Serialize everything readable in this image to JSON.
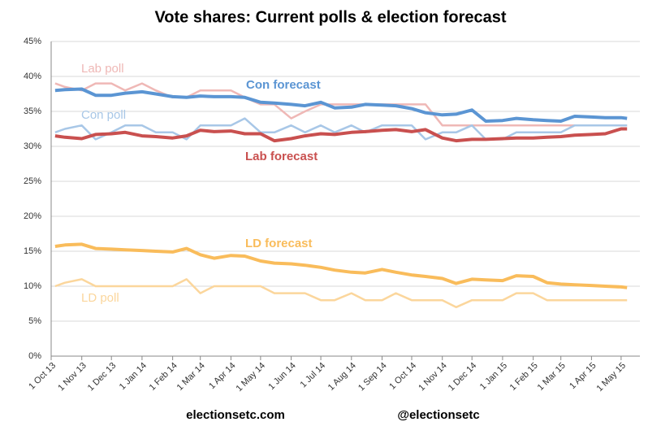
{
  "chart_data": {
    "type": "line",
    "title": "Vote shares: Current polls & election forecast",
    "credits": [
      "electionsetc.com",
      "@electionsetc"
    ],
    "x": [
      "2013-10-05",
      "2013-10-15",
      "2013-11-01",
      "2013-11-15",
      "2013-12-01",
      "2013-12-15",
      "2014-01-01",
      "2014-01-15",
      "2014-02-01",
      "2014-02-15",
      "2014-03-01",
      "2014-03-15",
      "2014-04-01",
      "2014-04-15",
      "2014-05-01",
      "2014-05-15",
      "2014-06-01",
      "2014-06-15",
      "2014-07-01",
      "2014-07-15",
      "2014-08-01",
      "2014-08-15",
      "2014-09-01",
      "2014-09-15",
      "2014-10-01",
      "2014-10-15",
      "2014-11-01",
      "2014-11-15",
      "2014-12-01",
      "2014-12-15",
      "2015-01-01",
      "2015-01-15",
      "2015-02-01",
      "2015-02-15",
      "2015-03-01",
      "2015-03-15",
      "2015-04-01",
      "2015-04-15",
      "2015-05-01",
      "2015-05-07"
    ],
    "xlim": [
      "2013-10-01",
      "2015-05-20"
    ],
    "xticks": [
      {
        "value": "2013-10-01",
        "label": "1 Oct 13"
      },
      {
        "value": "2013-11-01",
        "label": "1 Nov 13"
      },
      {
        "value": "2013-12-01",
        "label": "1 Dec 13"
      },
      {
        "value": "2014-01-01",
        "label": "1 Jan 14"
      },
      {
        "value": "2014-02-01",
        "label": "1 Feb 14"
      },
      {
        "value": "2014-03-01",
        "label": "1 Mar 14"
      },
      {
        "value": "2014-04-01",
        "label": "1 Apr 14"
      },
      {
        "value": "2014-05-01",
        "label": "1 May 14"
      },
      {
        "value": "2014-06-01",
        "label": "1 Jun 14"
      },
      {
        "value": "2014-07-01",
        "label": "1 Jul 14"
      },
      {
        "value": "2014-08-01",
        "label": "1 Aug 14"
      },
      {
        "value": "2014-09-01",
        "label": "1 Sep 14"
      },
      {
        "value": "2014-10-01",
        "label": "1 Oct 14"
      },
      {
        "value": "2014-11-01",
        "label": "1 Nov 14"
      },
      {
        "value": "2014-12-01",
        "label": "1 Dec 14"
      },
      {
        "value": "2015-01-01",
        "label": "1 Jan 15"
      },
      {
        "value": "2015-02-01",
        "label": "1 Feb 15"
      },
      {
        "value": "2015-03-01",
        "label": "1 Mar 15"
      },
      {
        "value": "2015-04-01",
        "label": "1 Apr 15"
      },
      {
        "value": "2015-05-01",
        "label": "1 May 15"
      }
    ],
    "ylim": [
      0,
      45
    ],
    "yticks": [
      {
        "value": 0,
        "label": "0%"
      },
      {
        "value": 5,
        "label": "5%"
      },
      {
        "value": 10,
        "label": "10%"
      },
      {
        "value": 15,
        "label": "15%"
      },
      {
        "value": 20,
        "label": "20%"
      },
      {
        "value": 25,
        "label": "25%"
      },
      {
        "value": 30,
        "label": "30%"
      },
      {
        "value": 35,
        "label": "35%"
      },
      {
        "value": 40,
        "label": "40%"
      },
      {
        "value": 45,
        "label": "45%"
      }
    ],
    "grid": true,
    "series": [
      {
        "name": "Lab poll",
        "color": "#efb8b6",
        "line_width": 2.5,
        "values": [
          39,
          38.5,
          38,
          39,
          39,
          38,
          39,
          38,
          37,
          37,
          38,
          38,
          38,
          37,
          36,
          36,
          34,
          35,
          36,
          36,
          36,
          36,
          36,
          36,
          36,
          36,
          33,
          33,
          33,
          33,
          33,
          33,
          33,
          33,
          33,
          33,
          33,
          33,
          33,
          33
        ]
      },
      {
        "name": "Con poll",
        "color": "#a8c7e7",
        "line_width": 2.5,
        "values": [
          32,
          32.5,
          33,
          31,
          32,
          33,
          33,
          32,
          32,
          31,
          33,
          33,
          33,
          34,
          32,
          32,
          33,
          32,
          33,
          32,
          33,
          32,
          33,
          33,
          33,
          31,
          32,
          32,
          33,
          31,
          31,
          32,
          32,
          32,
          32,
          33,
          33,
          33,
          33,
          33
        ]
      },
      {
        "name": "LD poll",
        "color": "#fbd69c",
        "line_width": 2.5,
        "values": [
          10,
          10.5,
          11,
          10,
          10,
          10,
          10,
          10,
          10,
          11,
          9,
          10,
          10,
          10,
          10,
          9,
          9,
          9,
          8,
          8,
          9,
          8,
          8,
          9,
          8,
          8,
          8,
          7,
          8,
          8,
          8,
          9,
          9,
          8,
          8,
          8,
          8,
          8,
          8,
          8
        ]
      },
      {
        "name": "Con forecast",
        "color": "#5b95d3",
        "line_width": 4,
        "values": [
          38,
          38.1,
          38.2,
          37.3,
          37.3,
          37.6,
          37.8,
          37.5,
          37.1,
          37,
          37.2,
          37.1,
          37.1,
          37,
          36.3,
          36.2,
          36,
          35.8,
          36.3,
          35.5,
          35.6,
          36,
          35.9,
          35.8,
          35.4,
          34.8,
          34.5,
          34.6,
          35.2,
          33.6,
          33.7,
          34,
          33.8,
          33.7,
          33.6,
          34.3,
          34.2,
          34.1,
          34.1,
          34
        ]
      },
      {
        "name": "Lab forecast",
        "color": "#c9504f",
        "line_width": 4,
        "values": [
          31.5,
          31.3,
          31.1,
          31.7,
          31.8,
          32,
          31.5,
          31.4,
          31.2,
          31.5,
          32.3,
          32.1,
          32.2,
          31.8,
          31.8,
          30.8,
          31.1,
          31.5,
          31.8,
          31.7,
          32,
          32.1,
          32.3,
          32.4,
          32.1,
          32.4,
          31.2,
          30.8,
          31,
          31,
          31.1,
          31.2,
          31.2,
          31.3,
          31.4,
          31.6,
          31.7,
          31.8,
          32.5,
          32.5
        ]
      },
      {
        "name": "LD forecast",
        "color": "#f9bc5b",
        "line_width": 4,
        "values": [
          15.7,
          15.9,
          16,
          15.4,
          15.3,
          15.2,
          15.1,
          15,
          14.9,
          15.4,
          14.5,
          14,
          14.4,
          14.3,
          13.6,
          13.3,
          13.2,
          13,
          12.7,
          12.3,
          12,
          11.9,
          12.4,
          12,
          11.6,
          11.4,
          11.1,
          10.4,
          11,
          10.9,
          10.8,
          11.5,
          11.4,
          10.5,
          10.3,
          10.2,
          10.1,
          10,
          9.9,
          9.8
        ]
      }
    ]
  }
}
